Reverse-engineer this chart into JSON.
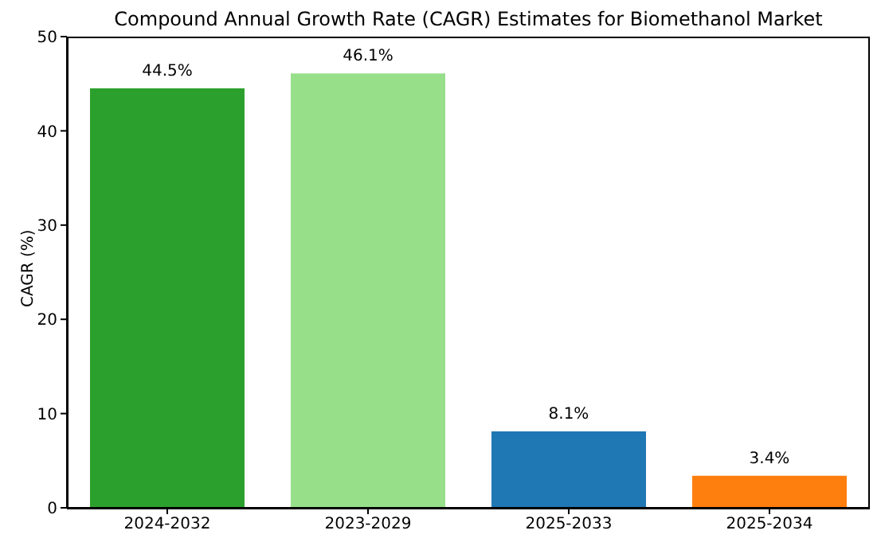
{
  "chart_data": {
    "type": "bar",
    "title": "Compound Annual Growth Rate (CAGR) Estimates for Biomethanol Market",
    "ylabel": "CAGR (%)",
    "categories": [
      "2024-2032",
      "2023-2029",
      "2025-2033",
      "2025-2034"
    ],
    "values": [
      44.5,
      46.1,
      8.1,
      3.4
    ],
    "colors": [
      "#2ca02c",
      "#98df8a",
      "#1f77b4",
      "#ff7f0e"
    ],
    "value_labels": [
      "44.5%",
      "46.1%",
      "8.1%",
      "3.4%"
    ],
    "ylim": [
      0,
      50
    ],
    "yticks": [
      0,
      10,
      20,
      30,
      40,
      50
    ],
    "grid": false,
    "legend": false
  }
}
